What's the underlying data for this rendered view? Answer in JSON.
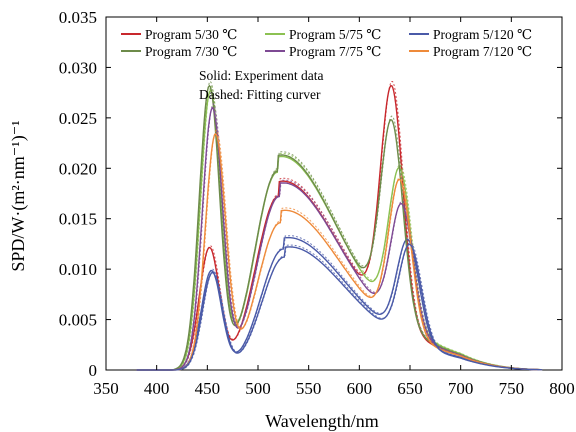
{
  "chart_data": {
    "type": "line",
    "xlabel": "Wavelength/nm",
    "ylabel": "SPD/W·(m²·nm⁻¹)⁻¹",
    "xlim": [
      350,
      800
    ],
    "ylim": [
      0,
      0.035
    ],
    "x_ticks": [
      "350",
      "400",
      "450",
      "500",
      "550",
      "600",
      "650",
      "700",
      "750",
      "800"
    ],
    "y_ticks": [
      "0",
      "0.005",
      "0.010",
      "0.015",
      "0.020",
      "0.025",
      "0.030",
      "0.035"
    ],
    "grid": false,
    "legend_position": "top",
    "annotations": [
      "Solid: Experiment data",
      "Dashed: Fitting curver"
    ],
    "series": [
      {
        "name": "Program 5/30 ℃",
        "color": "#c8282d",
        "blue_peak": 0.012,
        "blue_peak_nm": 452,
        "valley": 0.0042,
        "green_peak": 0.0172,
        "green_peak_nm": 520,
        "trough": 0.0092,
        "trough_nm": 608,
        "red_peak": 0.0262,
        "red_peak_nm": 632
      },
      {
        "name": "Program 5/75 ℃",
        "color": "#8cc152",
        "blue_peak": 0.0275,
        "blue_peak_nm": 453,
        "valley": 0.005,
        "green_peak": 0.0196,
        "green_peak_nm": 519,
        "trough": 0.01,
        "trough_nm": 610,
        "red_peak": 0.0186,
        "red_peak_nm": 640
      },
      {
        "name": "Program 5/120 ℃",
        "color": "#4a5aa8",
        "blue_peak": 0.0098,
        "blue_peak_nm": 454,
        "valley": 0.0034,
        "green_peak": 0.012,
        "green_peak_nm": 525,
        "trough": 0.007,
        "trough_nm": 615,
        "red_peak": 0.0122,
        "red_peak_nm": 648
      },
      {
        "name": "Program 7/30 ℃",
        "color": "#6d8b4a",
        "blue_peak": 0.028,
        "blue_peak_nm": 452,
        "valley": 0.0052,
        "green_peak": 0.0197,
        "green_peak_nm": 519,
        "trough": 0.0098,
        "trough_nm": 607,
        "red_peak": 0.0226,
        "red_peak_nm": 632
      },
      {
        "name": "Program 7/75 ℃",
        "color": "#7e4a94",
        "blue_peak": 0.0258,
        "blue_peak_nm": 455,
        "valley": 0.0046,
        "green_peak": 0.0172,
        "green_peak_nm": 521,
        "trough": 0.0086,
        "trough_nm": 612,
        "red_peak": 0.0152,
        "red_peak_nm": 642
      },
      {
        "name": "Program 7/120 ℃",
        "color": "#ee8a3a",
        "blue_peak": 0.0232,
        "blue_peak_nm": 458,
        "valley": 0.004,
        "green_peak": 0.0146,
        "green_peak_nm": 522,
        "trough": 0.008,
        "trough_nm": 614,
        "red_peak": 0.0176,
        "red_peak_nm": 640
      },
      {
        "name": "",
        "color": "#4a5aa8",
        "blue_peak": 0.0096,
        "blue_peak_nm": 455,
        "valley": 0.0033,
        "green_peak": 0.0112,
        "green_peak_nm": 526,
        "trough": 0.0064,
        "trough_nm": 617,
        "red_peak": 0.0118,
        "red_peak_nm": 650
      }
    ]
  }
}
